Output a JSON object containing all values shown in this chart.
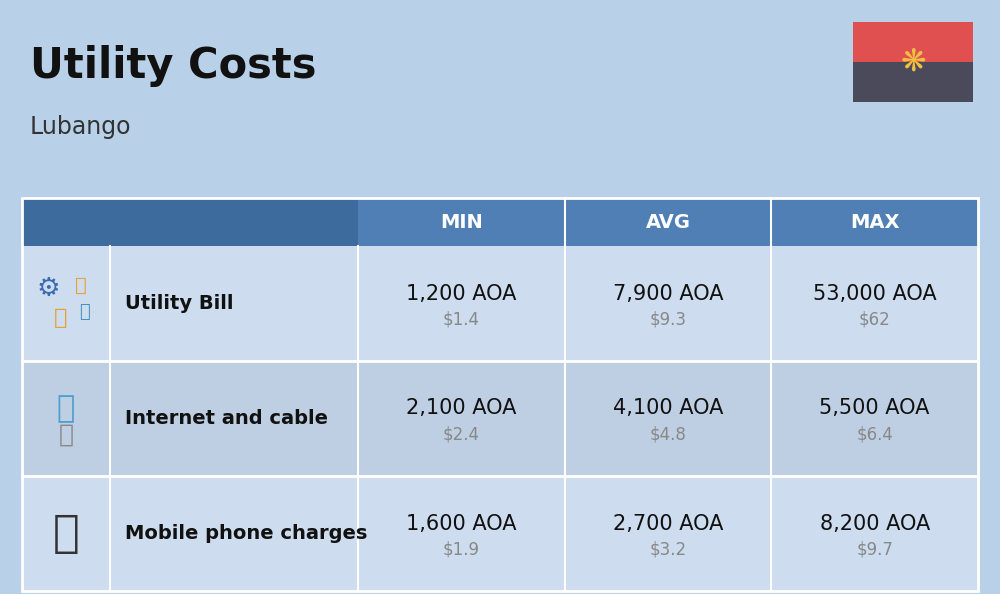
{
  "title": "Utility Costs",
  "subtitle": "Lubango",
  "bg_color": "#b8d0e8",
  "header_dark_bg": "#3d6b9e",
  "header_light_bg": "#4f7fb5",
  "header_text_color": "#ffffff",
  "row_color_light": "#cddcee",
  "row_color_dark": "#bfcfe3",
  "col_headers": [
    "MIN",
    "AVG",
    "MAX"
  ],
  "rows": [
    {
      "label": "Utility Bill",
      "min_aoa": "1,200 AOA",
      "min_usd": "$1.4",
      "avg_aoa": "7,900 AOA",
      "avg_usd": "$9.3",
      "max_aoa": "53,000 AOA",
      "max_usd": "$62"
    },
    {
      "label": "Internet and cable",
      "min_aoa": "2,100 AOA",
      "min_usd": "$2.4",
      "avg_aoa": "4,100 AOA",
      "avg_usd": "$4.8",
      "max_aoa": "5,500 AOA",
      "max_usd": "$6.4"
    },
    {
      "label": "Mobile phone charges",
      "min_aoa": "1,600 AOA",
      "min_usd": "$1.9",
      "avg_aoa": "2,700 AOA",
      "avg_usd": "$3.2",
      "max_aoa": "8,200 AOA",
      "max_usd": "$9.7"
    }
  ],
  "flag_top_color": "#e05050",
  "flag_bottom_color": "#4a4a5a",
  "flag_emblem_color": "#f0c040",
  "title_fontsize": 30,
  "subtitle_fontsize": 17,
  "header_fontsize": 14,
  "label_fontsize": 14,
  "value_fontsize": 15,
  "usd_fontsize": 12
}
